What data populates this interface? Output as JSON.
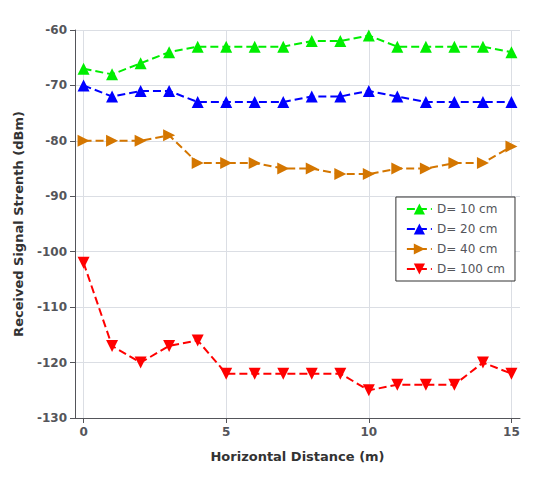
{
  "chart_data": {
    "type": "line",
    "xlabel": "Horizontal Distance (m)",
    "ylabel": "Received Signal Strenth (dBm)",
    "xlim": [
      -0.3,
      15.3
    ],
    "ylim": [
      -130,
      -60
    ],
    "xticks": [
      0,
      5,
      10,
      15
    ],
    "yticks": [
      -130,
      -120,
      -110,
      -100,
      -90,
      -80,
      -70,
      -60
    ],
    "x": [
      0,
      1,
      2,
      3,
      4,
      5,
      6,
      7,
      8,
      9,
      10,
      11,
      12,
      13,
      14,
      15
    ],
    "line_style": "dashed",
    "grid": true,
    "legend": "center right",
    "series": [
      {
        "name": "D= 10 cm",
        "color": "#00EE00",
        "marker": "triangle-up",
        "values": [
          -67,
          -68,
          -66,
          -64,
          -63,
          -63,
          -63,
          -63,
          -62,
          -62,
          -61,
          -63,
          -63,
          -63,
          -63,
          -64
        ]
      },
      {
        "name": "D= 20 cm",
        "color": "#0000FF",
        "marker": "triangle-up",
        "values": [
          -70,
          -72,
          -71,
          -71,
          -73,
          -73,
          -73,
          -73,
          -72,
          -72,
          -71,
          -72,
          -73,
          -73,
          -73,
          -73
        ]
      },
      {
        "name": "D= 40 cm",
        "color": "#D47600",
        "marker": "triangle-right",
        "values": [
          -80,
          -80,
          -80,
          -79,
          -84,
          -84,
          -84,
          -85,
          -85,
          -86,
          -86,
          -85,
          -85,
          -84,
          -84,
          -81
        ]
      },
      {
        "name": "D= 100 cm",
        "color": "#FF0000",
        "marker": "triangle-down",
        "values": [
          -102,
          -117,
          -120,
          -117,
          -116,
          -122,
          -122,
          -122,
          -122,
          -122,
          -125,
          -124,
          -124,
          -124,
          -120,
          -122
        ]
      }
    ]
  }
}
